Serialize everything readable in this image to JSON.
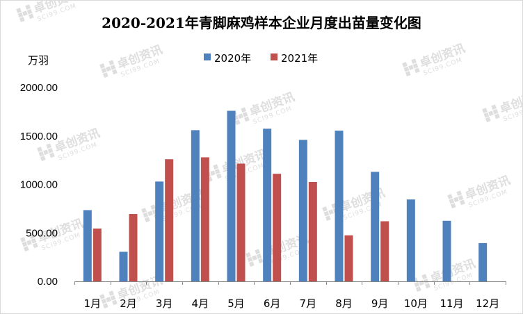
{
  "chart_data": {
    "type": "bar",
    "title": "2020-2021年青脚麻鸡样本企业月度出苗量变化图",
    "xlabel": "",
    "ylabel": "万羽",
    "categories": [
      "1月",
      "2月",
      "3月",
      "4月",
      "5月",
      "6月",
      "7月",
      "8月",
      "9月",
      "10月",
      "11月",
      "12月"
    ],
    "series": [
      {
        "name": "2020年",
        "color": "#4F81BD",
        "values": [
          735,
          305,
          1030,
          1560,
          1760,
          1575,
          1460,
          1555,
          1130,
          845,
          625,
          395
        ]
      },
      {
        "name": "2021年",
        "color": "#C0504D",
        "values": [
          545,
          695,
          1260,
          1280,
          1215,
          1110,
          1025,
          475,
          620,
          null,
          null,
          null
        ]
      }
    ],
    "ylim": [
      0,
      2000
    ],
    "yticks": [
      "0.00",
      "500.00",
      "1000.00",
      "1500.00",
      "2000.00"
    ],
    "grid": false,
    "legend_position": "top-center"
  },
  "watermark": {
    "brand": "卓创资讯",
    "site": "SCI99.COM"
  }
}
